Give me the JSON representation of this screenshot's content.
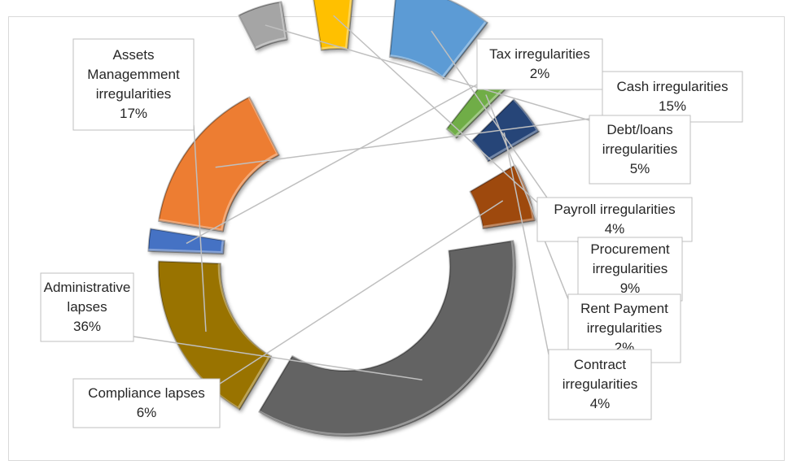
{
  "chart_data": {
    "type": "pie",
    "title": "",
    "slices": [
      {
        "label": "Tax irregularities",
        "value": 2,
        "percent_text": "2%",
        "color": "#4472c4"
      },
      {
        "label": "Cash irregularities",
        "value": 15,
        "percent_text": "15%",
        "color": "#ed7d31"
      },
      {
        "label": "Debt/loans irregularities",
        "value": 5,
        "percent_text": "5%",
        "color": "#a5a5a5"
      },
      {
        "label": "Payroll irregularities",
        "value": 4,
        "percent_text": "4%",
        "color": "#ffc000"
      },
      {
        "label": "Procurement irregularities",
        "value": 9,
        "percent_text": "9%",
        "color": "#5b9bd5"
      },
      {
        "label": "Rent Payment irregularities",
        "value": 2,
        "percent_text": "2%",
        "color": "#70ad47"
      },
      {
        "label": "Contract irregularities",
        "value": 4,
        "percent_text": "4%",
        "color": "#264478"
      },
      {
        "label": "Compliance lapses",
        "value": 6,
        "percent_text": "6%",
        "color": "#9e480e"
      },
      {
        "label": "Administrative lapses",
        "value": 36,
        "percent_text": "36%",
        "color": "#636363"
      },
      {
        "label": "Assets Managemment irregularities",
        "value": 17,
        "percent_text": "17%",
        "color": "#997300"
      }
    ],
    "legend": "none",
    "style": "doughnut, exploded slices with callout labels"
  }
}
